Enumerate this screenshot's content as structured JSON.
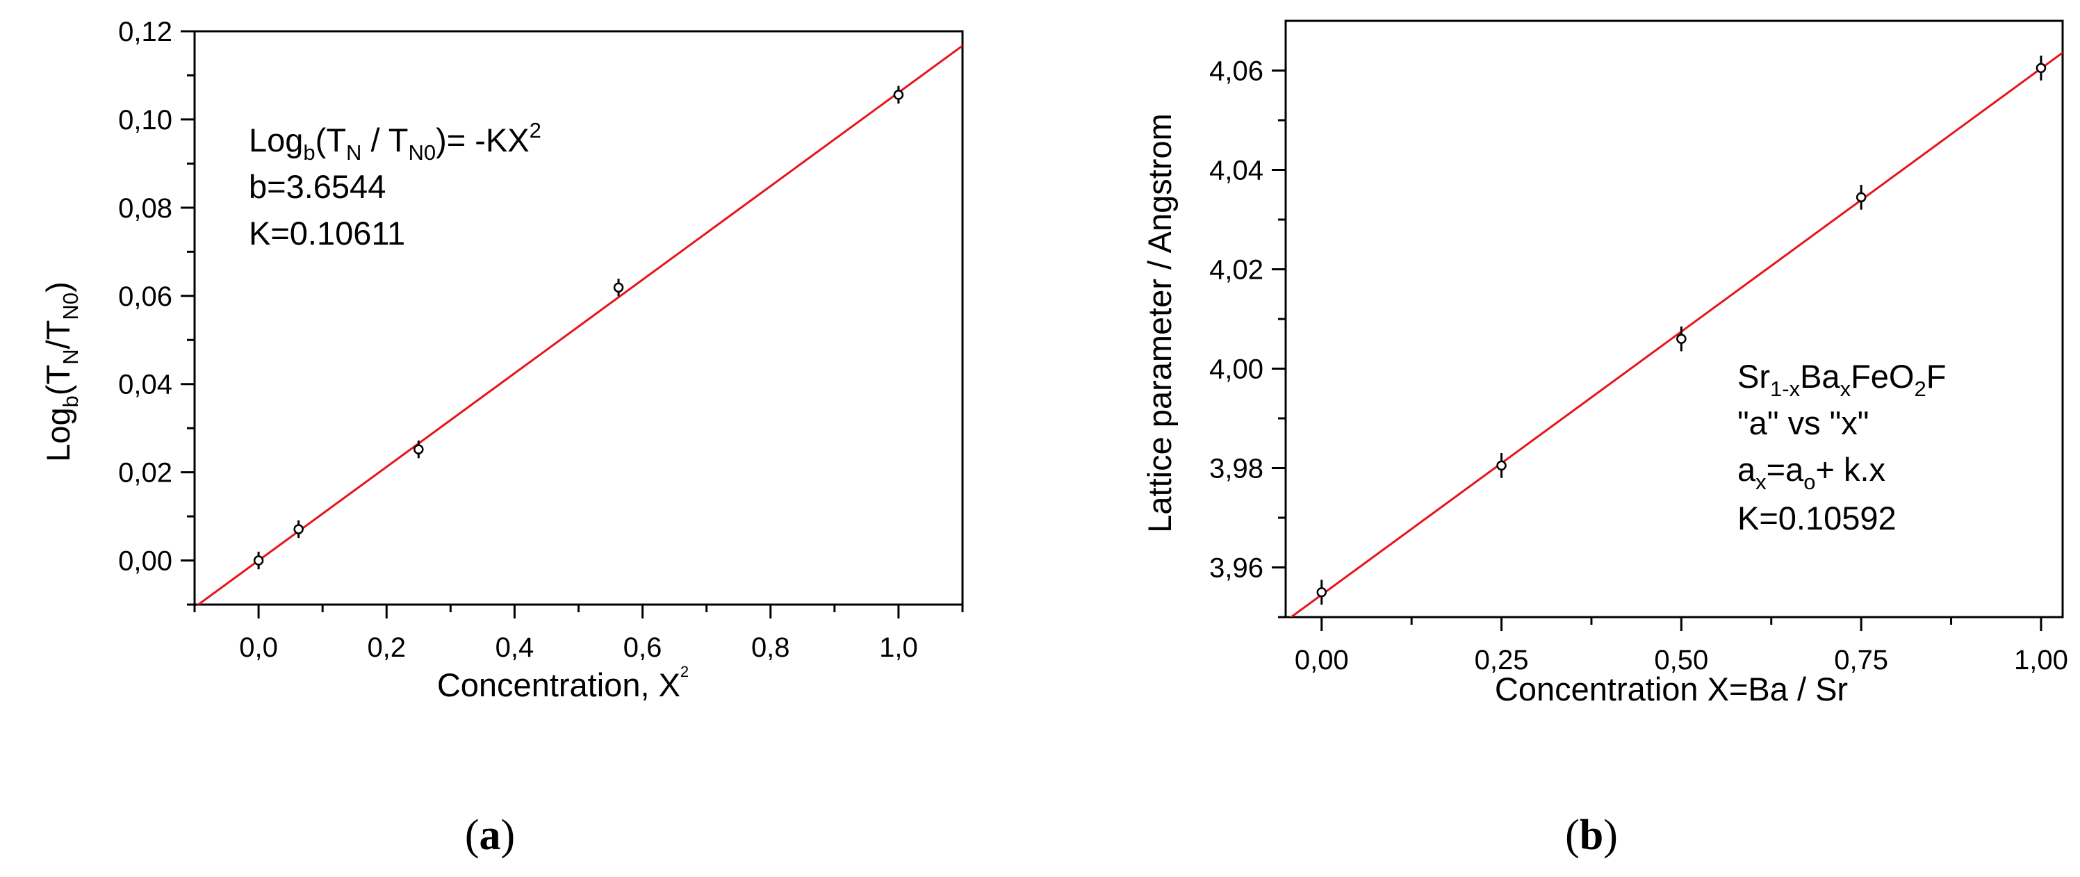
{
  "chart_data": [
    {
      "type": "scatter",
      "panel_label": {
        "open": "(",
        "letter": "a",
        "close": ")"
      },
      "xlabel": {
        "main": "Concentration, X",
        "sup": "2"
      },
      "ylabel": {
        "base": "Log",
        "base_sub": "b",
        "open": "(T",
        "sub1": "N",
        "slash": "/T",
        "sub2": "N0",
        "close": ")"
      },
      "xlim": [
        -0.1,
        1.1
      ],
      "ylim": [
        -0.01,
        0.12
      ],
      "xticks": [
        {
          "v": 0.0,
          "label": "0,0"
        },
        {
          "v": 0.2,
          "label": "0,2"
        },
        {
          "v": 0.4,
          "label": "0,4"
        },
        {
          "v": 0.6,
          "label": "0,6"
        },
        {
          "v": 0.8,
          "label": "0,8"
        },
        {
          "v": 1.0,
          "label": "1,0"
        }
      ],
      "yticks": [
        {
          "v": 0.0,
          "label": "0,00"
        },
        {
          "v": 0.02,
          "label": "0,02"
        },
        {
          "v": 0.04,
          "label": "0,04"
        },
        {
          "v": 0.06,
          "label": "0,06"
        },
        {
          "v": 0.08,
          "label": "0,08"
        },
        {
          "v": 0.1,
          "label": "0,10"
        },
        {
          "v": 0.12,
          "label": "0,12"
        }
      ],
      "xminor": [
        -0.1,
        0.1,
        0.3,
        0.5,
        0.7,
        0.9,
        1.1
      ],
      "yminor": [
        -0.01,
        0.01,
        0.03,
        0.05,
        0.07,
        0.09,
        0.11
      ],
      "series": [
        {
          "points": [
            {
              "x": 0.0,
              "y": 0.0,
              "err": 0.002
            },
            {
              "x": 0.0625,
              "y": 0.0071,
              "err": 0.002
            },
            {
              "x": 0.25,
              "y": 0.0252,
              "err": 0.002
            },
            {
              "x": 0.5625,
              "y": 0.0619,
              "err": 0.002
            },
            {
              "x": 1.0,
              "y": 0.1056,
              "err": 0.002
            }
          ]
        }
      ],
      "fit_line": {
        "slope": 0.10611,
        "intercept": 0.0,
        "color": "#e8141b"
      },
      "annotation": {
        "line1": {
          "a": "Log",
          "a_sub": "b",
          "b": "(T",
          "b_sub": "N",
          "c": " / T",
          "c_sub": "N0",
          "d": ")= -KX",
          "d_sup": "2"
        },
        "line2": "b=3.6544",
        "line3": "K=0.10611"
      }
    },
    {
      "type": "scatter",
      "panel_label": {
        "open": "(",
        "letter": "b",
        "close": ")"
      },
      "xlabel": "Concentration X=Ba / Sr",
      "ylabel": "Lattice parameter / Angstrom",
      "xlim": [
        -0.05,
        1.03
      ],
      "ylim": [
        3.95,
        4.07
      ],
      "xticks": [
        {
          "v": 0.0,
          "label": "0,00"
        },
        {
          "v": 0.25,
          "label": "0,25"
        },
        {
          "v": 0.5,
          "label": "0,50"
        },
        {
          "v": 0.75,
          "label": "0,75"
        },
        {
          "v": 1.0,
          "label": "1,00"
        }
      ],
      "yticks": [
        {
          "v": 3.96,
          "label": "3,96"
        },
        {
          "v": 3.98,
          "label": "3,98"
        },
        {
          "v": 4.0,
          "label": "4,00"
        },
        {
          "v": 4.02,
          "label": "4,02"
        },
        {
          "v": 4.04,
          "label": "4,04"
        },
        {
          "v": 4.06,
          "label": "4,06"
        }
      ],
      "xminor": [
        0.125,
        0.375,
        0.625,
        0.875
      ],
      "yminor": [
        3.95,
        3.97,
        3.99,
        4.01,
        4.03,
        4.05
      ],
      "series": [
        {
          "points": [
            {
              "x": 0.0,
              "y": 3.955,
              "err": 0.0025
            },
            {
              "x": 0.25,
              "y": 3.9805,
              "err": 0.0025
            },
            {
              "x": 0.5,
              "y": 4.006,
              "err": 0.0025
            },
            {
              "x": 0.75,
              "y": 4.0345,
              "err": 0.0025
            },
            {
              "x": 1.0,
              "y": 4.0605,
              "err": 0.0025
            }
          ]
        }
      ],
      "fit_line": {
        "slope": 0.10592,
        "intercept": 3.9545,
        "color": "#e8141b"
      },
      "annotation": {
        "line1": {
          "a": "Sr",
          "a_sub": "1-x",
          "b": "Ba",
          "b_sub": "x",
          "c": "FeO",
          "c_sub": "2",
          "d": "F"
        },
        "line2": "\"a\"  vs  \"x\"",
        "line3": {
          "a": "a",
          "a_sub": "x",
          "b": "=a",
          "b_sub": "o",
          "c": "+ k.x"
        },
        "line4": "K=0.10592"
      }
    }
  ]
}
